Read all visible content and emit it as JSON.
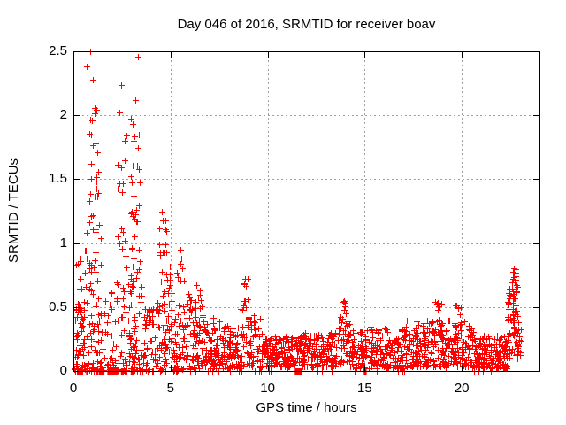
{
  "window": {
    "background": "#ffffff"
  },
  "chart_data": {
    "type": "scatter",
    "title": "Day 046 of 2016, SRMTID for receiver boav",
    "xlabel": "GPS time / hours",
    "ylabel": "SRMTID / TECUs",
    "xlim": [
      0,
      24
    ],
    "ylim": [
      0,
      2.5
    ],
    "xticks": [
      0,
      5,
      10,
      15,
      20
    ],
    "yticks": [
      0,
      0.5,
      1,
      1.5,
      2,
      2.5
    ],
    "grid": true,
    "legend": "none",
    "marker": {
      "glyph": "plus-icon",
      "color": "#ff0000",
      "size": 7
    },
    "colors": {
      "grid": "#a0a0a0",
      "border": "#000000",
      "text": "#000000"
    },
    "seed": 2016046,
    "clusters": [
      {
        "x": [
          0.05,
          0.6
        ],
        "n": 60,
        "y": [
          0.0,
          0.55
        ],
        "bias": 1.6
      },
      {
        "x": [
          0.1,
          0.5
        ],
        "n": 7,
        "y": [
          0.55,
          0.9
        ],
        "bias": 1.0
      },
      {
        "x": [
          0.55,
          1.5
        ],
        "n": 75,
        "y": [
          0.0,
          1.05
        ],
        "bias": 1.5
      },
      {
        "x": [
          0.65,
          1.35
        ],
        "n": 28,
        "y": [
          1.05,
          2.1
        ],
        "bias": 1.1
      },
      {
        "x": [
          1.5,
          2.75
        ],
        "n": 55,
        "y": [
          0.0,
          0.62
        ],
        "bias": 1.7
      },
      {
        "x": [
          2.2,
          2.75
        ],
        "n": 22,
        "y": [
          0.62,
          1.85
        ],
        "bias": 1.2
      },
      {
        "x": [
          2.8,
          3.6
        ],
        "n": 65,
        "y": [
          0.0,
          0.85
        ],
        "bias": 1.6
      },
      {
        "x": [
          2.95,
          3.5
        ],
        "n": 28,
        "y": [
          0.85,
          2.0
        ],
        "bias": 1.2
      },
      {
        "x": [
          3.6,
          4.3
        ],
        "n": 45,
        "y": [
          0.0,
          0.55
        ],
        "bias": 1.5
      },
      {
        "x": [
          4.3,
          5.05
        ],
        "n": 65,
        "y": [
          0.0,
          0.9
        ],
        "bias": 1.6
      },
      {
        "x": [
          4.4,
          4.85
        ],
        "n": 12,
        "y": [
          0.9,
          1.45
        ],
        "bias": 1.1
      },
      {
        "x": [
          5.05,
          6.05
        ],
        "n": 75,
        "y": [
          0.0,
          0.65
        ],
        "bias": 1.7
      },
      {
        "x": [
          5.3,
          5.75
        ],
        "n": 8,
        "y": [
          0.65,
          0.97
        ],
        "bias": 1.0
      },
      {
        "x": [
          6.05,
          6.7
        ],
        "n": 50,
        "y": [
          0.02,
          0.5
        ],
        "bias": 1.5
      },
      {
        "x": [
          6.25,
          6.6
        ],
        "n": 7,
        "y": [
          0.5,
          0.68
        ],
        "bias": 1.0
      },
      {
        "x": [
          6.7,
          7.6
        ],
        "n": 85,
        "y": [
          0.02,
          0.42
        ],
        "bias": 1.5
      },
      {
        "x": [
          7.6,
          8.6
        ],
        "n": 85,
        "y": [
          0.02,
          0.35
        ],
        "bias": 1.4
      },
      {
        "x": [
          8.6,
          9.15
        ],
        "n": 40,
        "y": [
          0.04,
          0.55
        ],
        "bias": 1.3
      },
      {
        "x": [
          8.75,
          9.0
        ],
        "n": 5,
        "y": [
          0.55,
          0.73
        ],
        "bias": 1.0
      },
      {
        "x": [
          9.15,
          9.7
        ],
        "n": 32,
        "y": [
          0.03,
          0.45
        ],
        "bias": 1.5
      },
      {
        "x": [
          9.7,
          11.5
        ],
        "n": 155,
        "y": [
          0.03,
          0.27
        ],
        "bias": 1.3
      },
      {
        "x": [
          11.5,
          13.6
        ],
        "n": 170,
        "y": [
          0.03,
          0.3
        ],
        "bias": 1.3
      },
      {
        "x": [
          13.6,
          14.25
        ],
        "n": 42,
        "y": [
          0.05,
          0.45
        ],
        "bias": 1.2
      },
      {
        "x": [
          13.85,
          14.1
        ],
        "n": 6,
        "y": [
          0.45,
          0.57
        ],
        "bias": 1.0
      },
      {
        "x": [
          14.25,
          15.2
        ],
        "n": 70,
        "y": [
          0.02,
          0.33
        ],
        "bias": 1.4
      },
      {
        "x": [
          15.2,
          17.1
        ],
        "n": 150,
        "y": [
          0.02,
          0.35
        ],
        "bias": 1.4
      },
      {
        "x": [
          17.1,
          18.55
        ],
        "n": 120,
        "y": [
          0.03,
          0.4
        ],
        "bias": 1.3
      },
      {
        "x": [
          18.6,
          18.95
        ],
        "n": 9,
        "y": [
          0.35,
          0.55
        ],
        "bias": 1.0
      },
      {
        "x": [
          18.55,
          20.6
        ],
        "n": 160,
        "y": [
          0.03,
          0.4
        ],
        "bias": 1.3
      },
      {
        "x": [
          19.55,
          19.95
        ],
        "n": 6,
        "y": [
          0.4,
          0.52
        ],
        "bias": 1.0
      },
      {
        "x": [
          20.6,
          22.35
        ],
        "n": 150,
        "y": [
          0.02,
          0.28
        ],
        "bias": 1.4
      },
      {
        "x": [
          22.35,
          22.75
        ],
        "n": 45,
        "y": [
          0.1,
          0.65
        ],
        "bias": 1.1
      },
      {
        "x": [
          22.55,
          22.9
        ],
        "n": 25,
        "y": [
          0.3,
          0.7
        ],
        "bias": 1.0
      },
      {
        "x": [
          22.6,
          22.85
        ],
        "n": 8,
        "y": [
          0.7,
          0.8
        ],
        "bias": 1.0
      },
      {
        "x": [
          22.75,
          23.05
        ],
        "n": 20,
        "y": [
          0.05,
          0.35
        ],
        "bias": 1.2
      }
    ],
    "outliers": [
      [
        0.86,
        2.5
      ],
      [
        0.68,
        2.38
      ],
      [
        1.02,
        2.28
      ],
      [
        1.1,
        2.06
      ],
      [
        0.95,
        1.96
      ],
      [
        3.32,
        2.46
      ],
      [
        3.18,
        2.12
      ],
      [
        3.05,
        1.93
      ],
      [
        2.45,
        2.24
      ],
      [
        2.38,
        2.02
      ],
      [
        2.62,
        1.8
      ],
      [
        2.66,
        1.65
      ],
      [
        4.55,
        1.25
      ],
      [
        8.85,
        0.72
      ],
      [
        6.35,
        0.67
      ],
      [
        13.95,
        0.55
      ],
      [
        18.75,
        0.53
      ],
      [
        22.7,
        0.8
      ],
      [
        22.65,
        0.76
      ]
    ],
    "zero_runs": [
      [
        0.18,
        0.5
      ],
      [
        0.65,
        0.75
      ],
      [
        1.3,
        1.6
      ],
      [
        1.75,
        2.3
      ],
      [
        2.45,
        2.6
      ],
      [
        2.95,
        3.15
      ],
      [
        11.4,
        11.75
      ],
      [
        14.95,
        15.1
      ]
    ],
    "zero_points": [
      0.08,
      0.9,
      1.05,
      1.18,
      2.75,
      3.3,
      3.55,
      4.1,
      4.45,
      4.75,
      5.3,
      6.3,
      6.9,
      7.15,
      7.45,
      8.05,
      8.5,
      8.65,
      9.35,
      9.55,
      9.65,
      10.05,
      10.15,
      12.55,
      12.8,
      13.3,
      14.5,
      15.6,
      16.5,
      16.7,
      16.95,
      17.05,
      20.65,
      20.85,
      21.1,
      21.5,
      22.4
    ]
  }
}
